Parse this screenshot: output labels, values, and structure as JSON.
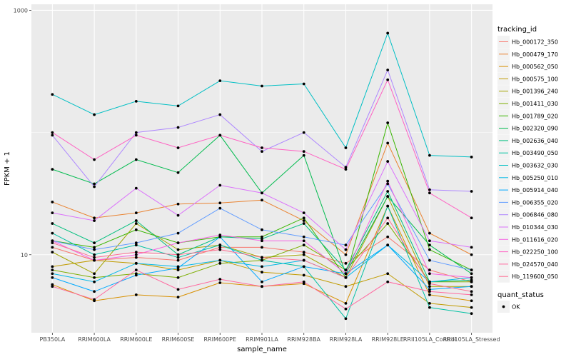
{
  "chart_data": {
    "type": "line",
    "xlabel": "sample_name",
    "ylabel": "FPKM + 1",
    "y_scale": "log10",
    "ylim": [
      2.3,
      1120
    ],
    "y_ticks": [
      10,
      1000
    ],
    "y_tick_labels": [
      "10",
      "1000"
    ],
    "grid": true,
    "legend_position": "right",
    "categories": [
      "PB350LA",
      "RRIM600LA",
      "RRIM600LE",
      "RRIM600SE",
      "RRIM600PE",
      "RRIM901LA",
      "RRIM928BA",
      "RRIM928LA",
      "RRIM928LE",
      "RRII105LA_Control",
      "RRII105LA_Stressed"
    ],
    "legend_title": "tracking_id",
    "series": [
      {
        "name": "Hb_000172_350",
        "color": "#F8766D",
        "values": [
          11.5,
          9.0,
          9.5,
          9.0,
          11.5,
          11.5,
          10.5,
          8.5,
          14.0,
          7.5,
          6.0
        ]
      },
      {
        "name": "Hb_000479_170",
        "color": "#EA8331",
        "values": [
          27.0,
          20.0,
          22.0,
          26.0,
          26.5,
          28.0,
          19.0,
          10.0,
          82.0,
          15.0,
          10.0
        ]
      },
      {
        "name": "Hb_000562_050",
        "color": "#D89000",
        "values": [
          5.7,
          4.2,
          4.7,
          4.5,
          5.9,
          5.5,
          5.8,
          4.0,
          25.0,
          4.7,
          4.2
        ]
      },
      {
        "name": "Hb_000575_100",
        "color": "#C09B00",
        "values": [
          8.0,
          9.0,
          8.5,
          7.5,
          9.0,
          7.2,
          6.8,
          5.5,
          7.0,
          4.0,
          3.7
        ]
      },
      {
        "name": "Hb_001396_240",
        "color": "#A3A500",
        "values": [
          10.5,
          7.0,
          18.0,
          11.0,
          12.0,
          9.5,
          10.0,
          6.5,
          30.0,
          5.5,
          5.5
        ]
      },
      {
        "name": "Hb_001411_030",
        "color": "#7CAE00",
        "values": [
          7.5,
          6.5,
          7.0,
          6.5,
          8.5,
          9.0,
          12.0,
          7.5,
          18.0,
          6.0,
          6.0
        ]
      },
      {
        "name": "Hb_001789_020",
        "color": "#39B600",
        "values": [
          13.0,
          11.5,
          16.0,
          12.5,
          14.0,
          14.0,
          20.0,
          6.5,
          120.0,
          11.0,
          7.5
        ]
      },
      {
        "name": "Hb_002320_090",
        "color": "#00BB4E",
        "values": [
          50.0,
          38.0,
          60.0,
          47.0,
          95.0,
          32.0,
          65.0,
          7.0,
          30.0,
          12.0,
          7.0
        ]
      },
      {
        "name": "Hb_002636_040",
        "color": "#00BF7D",
        "values": [
          18.0,
          12.5,
          19.0,
          10.0,
          14.0,
          13.5,
          18.0,
          7.5,
          33.0,
          6.0,
          6.2
        ]
      },
      {
        "name": "Hb_003490_050",
        "color": "#00C1A3",
        "values": [
          15.0,
          10.0,
          12.0,
          9.5,
          12.0,
          9.0,
          8.0,
          3.0,
          25.0,
          3.7,
          3.3
        ]
      },
      {
        "name": "Hb_003632_030",
        "color": "#00BFC4",
        "values": [
          205.0,
          140.0,
          180.0,
          165.0,
          265.0,
          240.0,
          250.0,
          75.0,
          650.0,
          65.0,
          63.0
        ]
      },
      {
        "name": "Hb_005250_010",
        "color": "#00B8E7",
        "values": [
          7.0,
          6.0,
          8.5,
          8.0,
          9.0,
          8.0,
          9.0,
          6.5,
          12.0,
          6.0,
          6.5
        ]
      },
      {
        "name": "Hb_005914_040",
        "color": "#00A9FF",
        "values": [
          6.5,
          5.0,
          6.8,
          7.8,
          14.0,
          6.0,
          8.0,
          7.0,
          12.0,
          5.2,
          5.5
        ]
      },
      {
        "name": "Hb_006355_020",
        "color": "#619CFF",
        "values": [
          13.0,
          11.0,
          12.5,
          15.0,
          24.0,
          16.0,
          14.0,
          12.0,
          38.0,
          9.0,
          7.5
        ]
      },
      {
        "name": "Hb_006846_080",
        "color": "#AE87FF",
        "values": [
          95.0,
          36.0,
          100.0,
          110.0,
          140.0,
          70.0,
          100.0,
          52.0,
          325.0,
          34.0,
          33.0
        ]
      },
      {
        "name": "Hb_010344_030",
        "color": "#DB72FB",
        "values": [
          22.0,
          19.0,
          35.0,
          21.0,
          37.0,
          32.0,
          22.0,
          11.0,
          58.0,
          13.0,
          11.5
        ]
      },
      {
        "name": "Hb_011616_020",
        "color": "#F564E3",
        "values": [
          13.0,
          9.0,
          10.0,
          12.5,
          14.5,
          13.0,
          13.0,
          7.0,
          40.0,
          7.0,
          6.5
        ]
      },
      {
        "name": "Hb_022250_100",
        "color": "#FF61C3",
        "values": [
          100.0,
          60.0,
          95.0,
          75.0,
          95.0,
          75.0,
          70.0,
          50.0,
          270.0,
          32.0,
          20.0
        ]
      },
      {
        "name": "Hb_024570_040",
        "color": "#FF689F",
        "values": [
          5.5,
          4.3,
          7.5,
          5.2,
          6.3,
          5.5,
          6.0,
          3.6,
          6.0,
          5.0,
          4.7
        ]
      },
      {
        "name": "Hb_119600_050",
        "color": "#FF6C91",
        "values": [
          12.5,
          9.5,
          10.5,
          10.0,
          11.0,
          9.5,
          9.0,
          6.5,
          20.0,
          5.8,
          5.0
        ]
      }
    ],
    "shape_legend": {
      "title": "quant_status",
      "items": [
        {
          "label": "OK",
          "color": "#000000"
        }
      ]
    }
  }
}
